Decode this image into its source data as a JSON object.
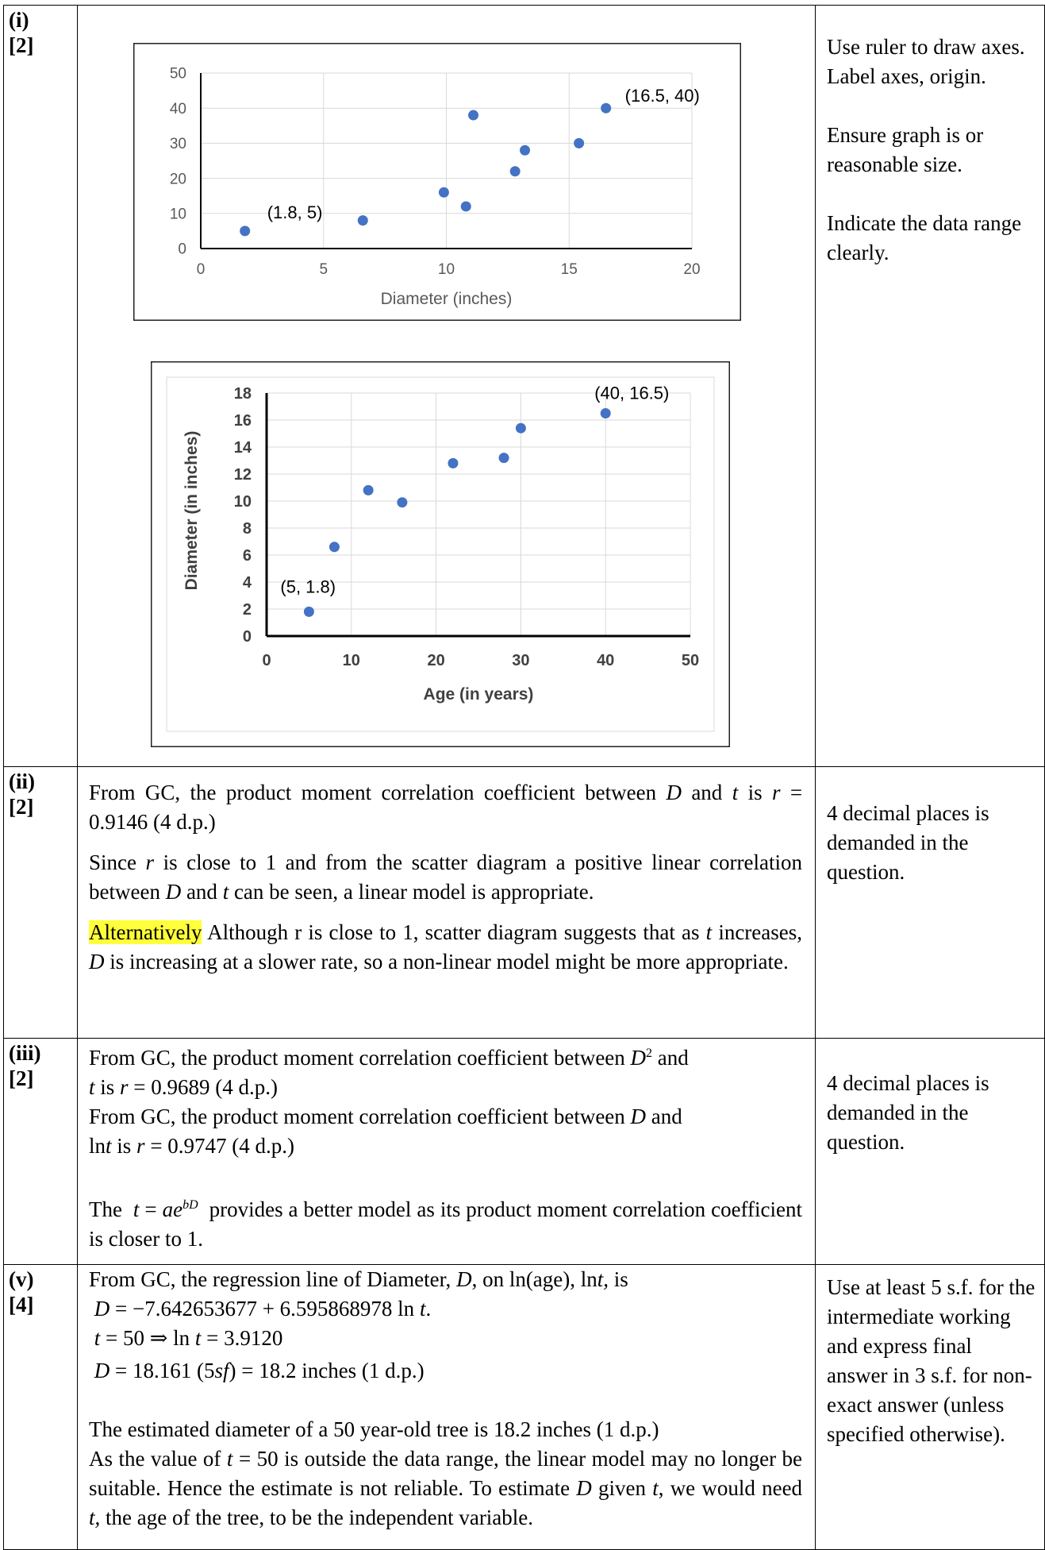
{
  "rows": [
    {
      "label": "(i)",
      "marks": "[2]",
      "notes": [
        "Use ruler to draw axes. Label axes, origin.",
        "Ensure graph is or reasonable size.",
        "Indicate the data range clearly."
      ]
    },
    {
      "label": "(ii)",
      "marks": "[2]",
      "p1": "From GC, the product moment correlation coefficient between",
      "p1_D": "D",
      "p1_and": "and",
      "p1_t": "t",
      "p1_is": "is",
      "p1_r": "r",
      "p1_val": "= 0.9146 (4 d.p.)",
      "p2a": "Since",
      "p2_r": "r",
      "p2b": "is close to 1 and from the scatter diagram a positive linear correlation between",
      "p2_D": "D",
      "p2_and": "and",
      "p2_t": "t",
      "p2c": "can be seen, a linear model is appropriate.",
      "alt_label": "Alternatively",
      "p3a": "Although r is close to 1, scatter diagram suggests that as",
      "p3_t": "t",
      "p3b": "increases,",
      "p3_D": "D",
      "p3c": "is increasing at a slower rate, so a non-linear model might be more appropriate.",
      "note": "4 decimal places is demanded in the question."
    },
    {
      "label": "(iii)",
      "marks": "[2]",
      "l1a": "From GC, the product moment correlation coefficient between",
      "l1_D": "D",
      "l1_sup": "2",
      "l1b": "and",
      "l2_t": "t",
      "l2a": "is",
      "l2_r": "r",
      "l2_val": "= 0.9689 (4 d.p.)",
      "l3a": "From GC, the product moment correlation coefficient between",
      "l3_D": "D",
      "l3b": "and",
      "l4a": "ln",
      "l4_t": "t",
      "l4b": "is",
      "l4_r": "r",
      "l4_val": "= 0.9747 (4 d.p.)",
      "l5a": "The",
      "l5_eq_t": "t",
      "l5_eq": "=",
      "l5_eq_a": "ae",
      "l5_eq_sup": "bD",
      "l5b": "provides a better model as its product moment correlation coefficient is closer to 1.",
      "note": "4 decimal places is demanded in the question."
    },
    {
      "label": "(v)",
      "marks": "[4]",
      "l1a": "From GC, the regression line of Diameter,",
      "l1_D": "D",
      "l1b": ", on ln(age), ln",
      "l1_t": "t,",
      "l1c": "is",
      "l2_D": "D",
      "l2_eq": "= −7.642653677 + 6.595868978 ln",
      "l2_t": "t",
      "l2_end": ".",
      "l3_t": "t",
      "l3_eq": "= 50 ⇒ ln",
      "l3_t2": "t",
      "l3_val": "= 3.9120",
      "l4_D": "D",
      "l4_eq": "= 18.161 (5",
      "l4_sf": "sf",
      "l4_val": ") = 18.2 inches (1 d.p.)",
      "l5": "The estimated diameter of a 50 year-old tree is 18.2 inches (1 d.p.)",
      "l6a": "As the value of",
      "l6_t": "t",
      "l6b": "= 50 is outside the data range, the linear model may no longer be suitable. Hence the estimate is not reliable. To estimate",
      "l6_D": "D",
      "l6c": "given",
      "l6_t2": "t",
      "l6d": ", we would need",
      "l6_t3": "t,",
      "l6e": "the age of the tree, to be the independent variable.",
      "note": "Use at least 5 s.f. for the intermediate working and express final answer in 3 s.f. for non-exact answer (unless specified otherwise)."
    }
  ],
  "chart_data": [
    {
      "type": "scatter",
      "title": "",
      "xlabel": "Diameter (inches)",
      "ylabel": "",
      "xlim": [
        0,
        20
      ],
      "ylim": [
        0,
        50
      ],
      "xticks": [
        0,
        5,
        10,
        15,
        20
      ],
      "yticks": [
        0,
        10,
        20,
        30,
        40,
        50
      ],
      "grid": true,
      "points": [
        {
          "x": 1.8,
          "y": 5
        },
        {
          "x": 6.6,
          "y": 8
        },
        {
          "x": 9.9,
          "y": 16
        },
        {
          "x": 10.8,
          "y": 12
        },
        {
          "x": 11.1,
          "y": 38
        },
        {
          "x": 12.8,
          "y": 22
        },
        {
          "x": 13.2,
          "y": 28
        },
        {
          "x": 15.4,
          "y": 30
        },
        {
          "x": 16.5,
          "y": 40
        }
      ],
      "annotations": [
        {
          "text": "(1.8, 5)",
          "x": 1.8,
          "y": 5
        },
        {
          "text": "(16.5, 40)",
          "x": 16.5,
          "y": 40
        }
      ]
    },
    {
      "type": "scatter",
      "title": "",
      "xlabel": "Age (in years)",
      "ylabel": "Diameter (in inches)",
      "xlim": [
        0,
        50
      ],
      "ylim": [
        0,
        18
      ],
      "xticks": [
        0,
        10,
        20,
        30,
        40,
        50
      ],
      "yticks": [
        0,
        2,
        4,
        6,
        8,
        10,
        12,
        14,
        16,
        18
      ],
      "grid": true,
      "points": [
        {
          "x": 5,
          "y": 1.8
        },
        {
          "x": 8,
          "y": 6.6
        },
        {
          "x": 12,
          "y": 10.8
        },
        {
          "x": 16,
          "y": 9.9
        },
        {
          "x": 22,
          "y": 12.8
        },
        {
          "x": 28,
          "y": 13.2
        },
        {
          "x": 30,
          "y": 15.4
        },
        {
          "x": 40,
          "y": 16.5
        }
      ],
      "annotations": [
        {
          "text": "(5, 1.8)",
          "x": 5,
          "y": 1.8
        },
        {
          "text": "(40, 16.5)",
          "x": 40,
          "y": 16.5
        }
      ]
    }
  ]
}
